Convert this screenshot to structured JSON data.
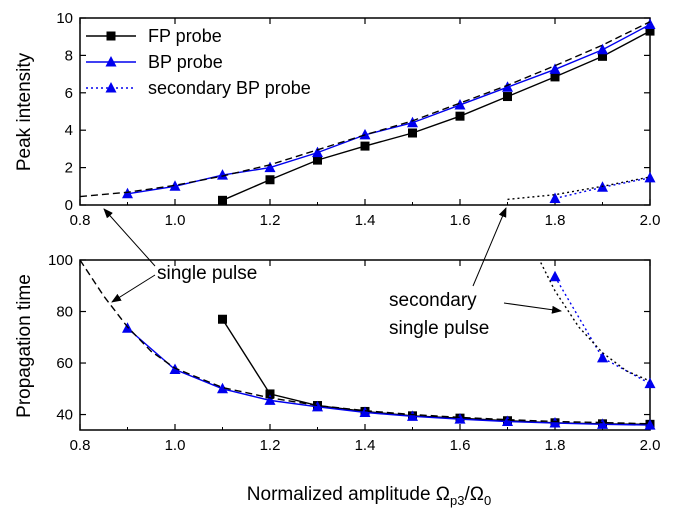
{
  "chart_data": [
    {
      "type": "line",
      "panel": "top",
      "ylabel": "Peak intensity",
      "xlim": [
        0.8,
        2.0
      ],
      "ylim": [
        0,
        10
      ],
      "xticks": [
        "0.8",
        "1.0",
        "1.2",
        "1.4",
        "1.6",
        "1.8",
        "2.0"
      ],
      "yticks": [
        "0",
        "2",
        "4",
        "6",
        "8",
        "10"
      ],
      "legend_position": "top-left",
      "series": [
        {
          "name": "FP probe",
          "color": "#000000",
          "marker": "square",
          "line": "solid",
          "x": [
            1.1,
            1.2,
            1.3,
            1.4,
            1.5,
            1.6,
            1.7,
            1.8,
            1.9,
            2.0
          ],
          "y": [
            0.25,
            1.35,
            2.4,
            3.15,
            3.85,
            4.75,
            5.8,
            6.85,
            7.95,
            9.3
          ]
        },
        {
          "name": "BP probe",
          "color": "#0000ee",
          "marker": "triangle",
          "line": "solid",
          "x": [
            0.9,
            1.0,
            1.1,
            1.2,
            1.3,
            1.4,
            1.5,
            1.6,
            1.7,
            1.8,
            1.9,
            2.0
          ],
          "y": [
            0.6,
            1.0,
            1.6,
            2.0,
            2.8,
            3.75,
            4.4,
            5.35,
            6.3,
            7.25,
            8.3,
            9.65
          ]
        },
        {
          "name": "secondary BP probe",
          "color": "#0000ee",
          "marker": "triangle",
          "line": "dotted",
          "x": [
            1.8,
            1.9,
            2.0
          ],
          "y": [
            0.35,
            0.95,
            1.45
          ]
        },
        {
          "color": "#000000",
          "marker": "none",
          "line": "dashed",
          "x": [
            0.8,
            0.9,
            1.0,
            1.1,
            1.2,
            1.3,
            1.4,
            1.5,
            1.6,
            1.7,
            1.8,
            1.9,
            2.0
          ],
          "y": [
            0.45,
            0.68,
            1.05,
            1.55,
            2.15,
            2.95,
            3.75,
            4.5,
            5.45,
            6.4,
            7.45,
            8.55,
            9.8
          ]
        },
        {
          "color": "#000000",
          "marker": "none",
          "line": "dotted",
          "x": [
            1.7,
            1.8,
            1.9,
            2.0
          ],
          "y": [
            0.3,
            0.55,
            1.0,
            1.5
          ]
        }
      ]
    },
    {
      "type": "line",
      "panel": "bottom",
      "xlabel": "Normalized amplitude Ω",
      "xlabel_sub1": "p3",
      "xlabel_mid": "/Ω",
      "xlabel_sub2": "0",
      "ylabel": "Propagation time",
      "xlim": [
        0.8,
        2.0
      ],
      "ylim": [
        34,
        100
      ],
      "xticks": [
        "0.8",
        "1.0",
        "1.2",
        "1.4",
        "1.6",
        "1.8",
        "2.0"
      ],
      "yticks": [
        "40",
        "60",
        "80",
        "100"
      ],
      "series": [
        {
          "name": "FP probe",
          "color": "#000000",
          "marker": "square",
          "line": "solid",
          "x": [
            1.1,
            1.2,
            1.3,
            1.4,
            1.5,
            1.6,
            1.7,
            1.8,
            1.9,
            2.0
          ],
          "y": [
            77,
            48,
            43.5,
            41.2,
            39.5,
            38.6,
            37.6,
            36.8,
            36.4,
            36.2
          ]
        },
        {
          "name": "BP probe",
          "color": "#0000ee",
          "marker": "triangle",
          "line": "solid",
          "x": [
            0.9,
            1.0,
            1.1,
            1.2,
            1.3,
            1.4,
            1.5,
            1.6,
            1.7,
            1.8,
            1.9,
            2.0
          ],
          "y": [
            73.5,
            57.5,
            50,
            45.5,
            43,
            40.8,
            39.3,
            38.2,
            37.3,
            36.7,
            36.2,
            35.9
          ]
        },
        {
          "name": "secondary BP probe",
          "color": "#0000ee",
          "marker": "triangle",
          "line": "dotted",
          "x": [
            1.8,
            1.9,
            2.0
          ],
          "y": [
            93.5,
            62,
            52
          ]
        },
        {
          "color": "#000000",
          "marker": "none",
          "line": "dashed",
          "x": [
            0.8,
            0.85,
            0.9,
            0.95,
            1.0,
            1.1,
            1.2,
            1.3,
            1.4,
            1.5,
            1.6,
            1.7,
            1.8,
            1.9,
            2.0
          ],
          "y": [
            100,
            86,
            74,
            64.5,
            58,
            50.5,
            46.5,
            43.5,
            41.5,
            40,
            38.9,
            38,
            37.3,
            36.9,
            36.4
          ]
        },
        {
          "color": "#000000",
          "marker": "none",
          "line": "dotted",
          "x": [
            1.77,
            1.8,
            1.85,
            1.9,
            1.95,
            2.0
          ],
          "y": [
            99,
            88,
            74,
            64,
            57,
            53
          ]
        }
      ]
    }
  ],
  "annotations": {
    "single_pulse": "single pulse",
    "secondary_line1": "secondary",
    "secondary_line2": "single pulse"
  },
  "legend": [
    {
      "label": "FP probe",
      "color": "#000000",
      "marker": "square",
      "line": "solid"
    },
    {
      "label": "BP probe",
      "color": "#0000ee",
      "marker": "triangle",
      "line": "solid"
    },
    {
      "label": "secondary BP probe",
      "color": "#0000ee",
      "marker": "triangle",
      "line": "dotted"
    }
  ]
}
